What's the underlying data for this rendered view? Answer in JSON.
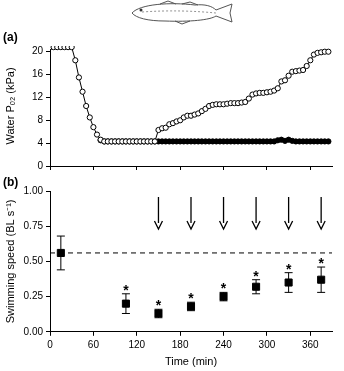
{
  "chart_data": [
    {
      "type": "line",
      "title": "(a)",
      "y_label": "Water Pₒ₂ (kPa)",
      "xlim": [
        0,
        390
      ],
      "xticks": [
        0,
        60,
        120,
        180,
        240,
        300,
        360
      ],
      "ylim": [
        0,
        21
      ],
      "yticks": [
        0,
        4,
        8,
        12,
        16,
        20
      ],
      "grid": false,
      "tick_labels": "y",
      "x": [
        0,
        5,
        10,
        15,
        20,
        25,
        30,
        35,
        40,
        45,
        50,
        55,
        60,
        65,
        70,
        75,
        80,
        85,
        90,
        95,
        100,
        105,
        110,
        115,
        120,
        125,
        130,
        135,
        140,
        145,
        150,
        155,
        160,
        165,
        170,
        175,
        180,
        185,
        190,
        195,
        200,
        205,
        210,
        215,
        220,
        225,
        230,
        235,
        240,
        245,
        250,
        255,
        260,
        265,
        270,
        275,
        280,
        285,
        290,
        295,
        300,
        305,
        310,
        315,
        320,
        325,
        330,
        335,
        340,
        345,
        350,
        355,
        360,
        365,
        370,
        375,
        380,
        385
      ],
      "series": [
        {
          "color": "#000000",
          "marker": "open_circle",
          "values": [
            20.8,
            20.8,
            20.8,
            20.8,
            20.8,
            20.8,
            20.8,
            18.5,
            15.5,
            13,
            10.5,
            8.5,
            6.8,
            5.5,
            4.6,
            4.3,
            4.3,
            4.3,
            4.3,
            4.3,
            4.3,
            4.3,
            4.3,
            4.3,
            4.3,
            4.3,
            4.3,
            4.3,
            4.3,
            4.3,
            6.3,
            6.6,
            6.7,
            7.3,
            7.5,
            7.8,
            8.0,
            8.5,
            8.8,
            8.8,
            9.0,
            9.2,
            9.6,
            10.0,
            10.5,
            10.7,
            10.8,
            10.8,
            10.8,
            10.9,
            11,
            11,
            11,
            11.1,
            11.2,
            11.8,
            12.5,
            12.7,
            12.8,
            12.8,
            12.9,
            13,
            13.2,
            13.6,
            14.8,
            15,
            15.8,
            16.5,
            16.6,
            16.7,
            16.8,
            17.5,
            18.5,
            19.5,
            19.8,
            19.9,
            20.0,
            20.0
          ]
        },
        {
          "color": "#000000",
          "marker": "filled_circle",
          "values": [
            null,
            null,
            null,
            null,
            null,
            null,
            null,
            null,
            null,
            null,
            null,
            null,
            null,
            null,
            4.5,
            4.3,
            4.3,
            4.3,
            4.3,
            4.3,
            4.3,
            4.3,
            4.3,
            4.3,
            4.3,
            4.3,
            4.3,
            4.3,
            4.3,
            4.3,
            4.3,
            4.3,
            4.3,
            4.3,
            4.3,
            4.3,
            4.3,
            4.3,
            4.3,
            4.3,
            4.3,
            4.3,
            4.3,
            4.3,
            4.3,
            4.3,
            4.3,
            4.3,
            4.3,
            4.3,
            4.3,
            4.3,
            4.3,
            4.3,
            4.3,
            4.3,
            4.3,
            4.3,
            4.3,
            4.3,
            4.3,
            4.3,
            4.3,
            4.5,
            4.6,
            4.4,
            4.6,
            4.4,
            4.3,
            4.3,
            4.3,
            4.3,
            4.3,
            4.3,
            4.3,
            4.3,
            4.3,
            4.3
          ]
        }
      ]
    },
    {
      "type": "scatter",
      "title": "(b)",
      "x_label": "Time (min)",
      "y_label": "Swimming speed (BL s⁻¹)",
      "xlim": [
        0,
        390
      ],
      "xticks": [
        0,
        60,
        120,
        180,
        240,
        300,
        360
      ],
      "ylim": [
        0,
        1
      ],
      "yticks": [
        {
          "value": 0,
          "label": "0.00"
        },
        {
          "value": 0.25,
          "label": "0.25"
        },
        {
          "value": 0.5,
          "label": "0.50"
        },
        {
          "value": 0.75,
          "label": "0.75"
        },
        {
          "value": 1,
          "label": "1.00"
        }
      ],
      "grid": false,
      "x": [
        15,
        105,
        150,
        195,
        240,
        285,
        330,
        375
      ],
      "series": [
        {
          "color": "#000000",
          "marker": "filled_square",
          "values": [
            0.56,
            0.2,
            0.13,
            0.18,
            0.25,
            0.32,
            0.35,
            0.37
          ],
          "errors": [
            0.12,
            0.07,
            0.03,
            0.03,
            0.03,
            0.05,
            0.07,
            0.09
          ]
        }
      ],
      "reference_line": 0.56,
      "arrows": [
        150,
        195,
        240,
        285,
        330,
        375
      ],
      "annotations": [
        {
          "x": 105,
          "text": "*"
        },
        {
          "x": 150,
          "text": "*"
        },
        {
          "x": 195,
          "text": "*"
        },
        {
          "x": 240,
          "text": "*"
        },
        {
          "x": 285,
          "text": "*"
        },
        {
          "x": 330,
          "text": "*"
        },
        {
          "x": 375,
          "text": "*"
        }
      ]
    }
  ]
}
